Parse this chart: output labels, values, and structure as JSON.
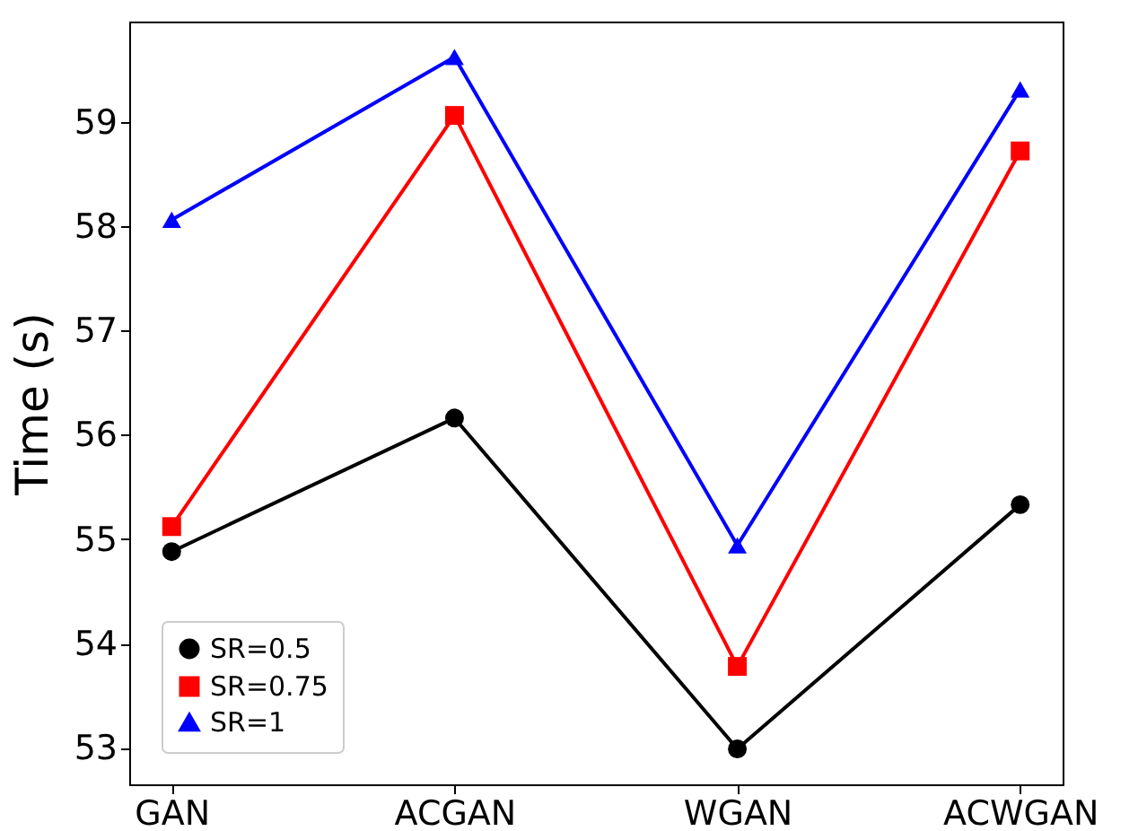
{
  "chart_data": {
    "type": "line",
    "ylabel": "Time (s)",
    "categories": [
      "GAN",
      "ACGAN",
      "WGAN",
      "ACWGAN"
    ],
    "series": [
      {
        "name": "SR=0.5",
        "color": "#000000",
        "marker": "circle",
        "values": [
          54.88,
          56.16,
          52.99,
          55.33
        ]
      },
      {
        "name": "SR=0.75",
        "color": "#ff0000",
        "marker": "square",
        "values": [
          55.12,
          59.06,
          53.78,
          58.72
        ]
      },
      {
        "name": "SR=1",
        "color": "#0000ff",
        "marker": "triangle",
        "values": [
          58.06,
          59.62,
          54.94,
          59.31
        ]
      }
    ],
    "ylim": [
      52.65,
      59.96
    ],
    "yticks": [
      53,
      54,
      55,
      56,
      57,
      58,
      59
    ],
    "grid": false,
    "legend": "bottom left",
    "line_style": "solid"
  }
}
